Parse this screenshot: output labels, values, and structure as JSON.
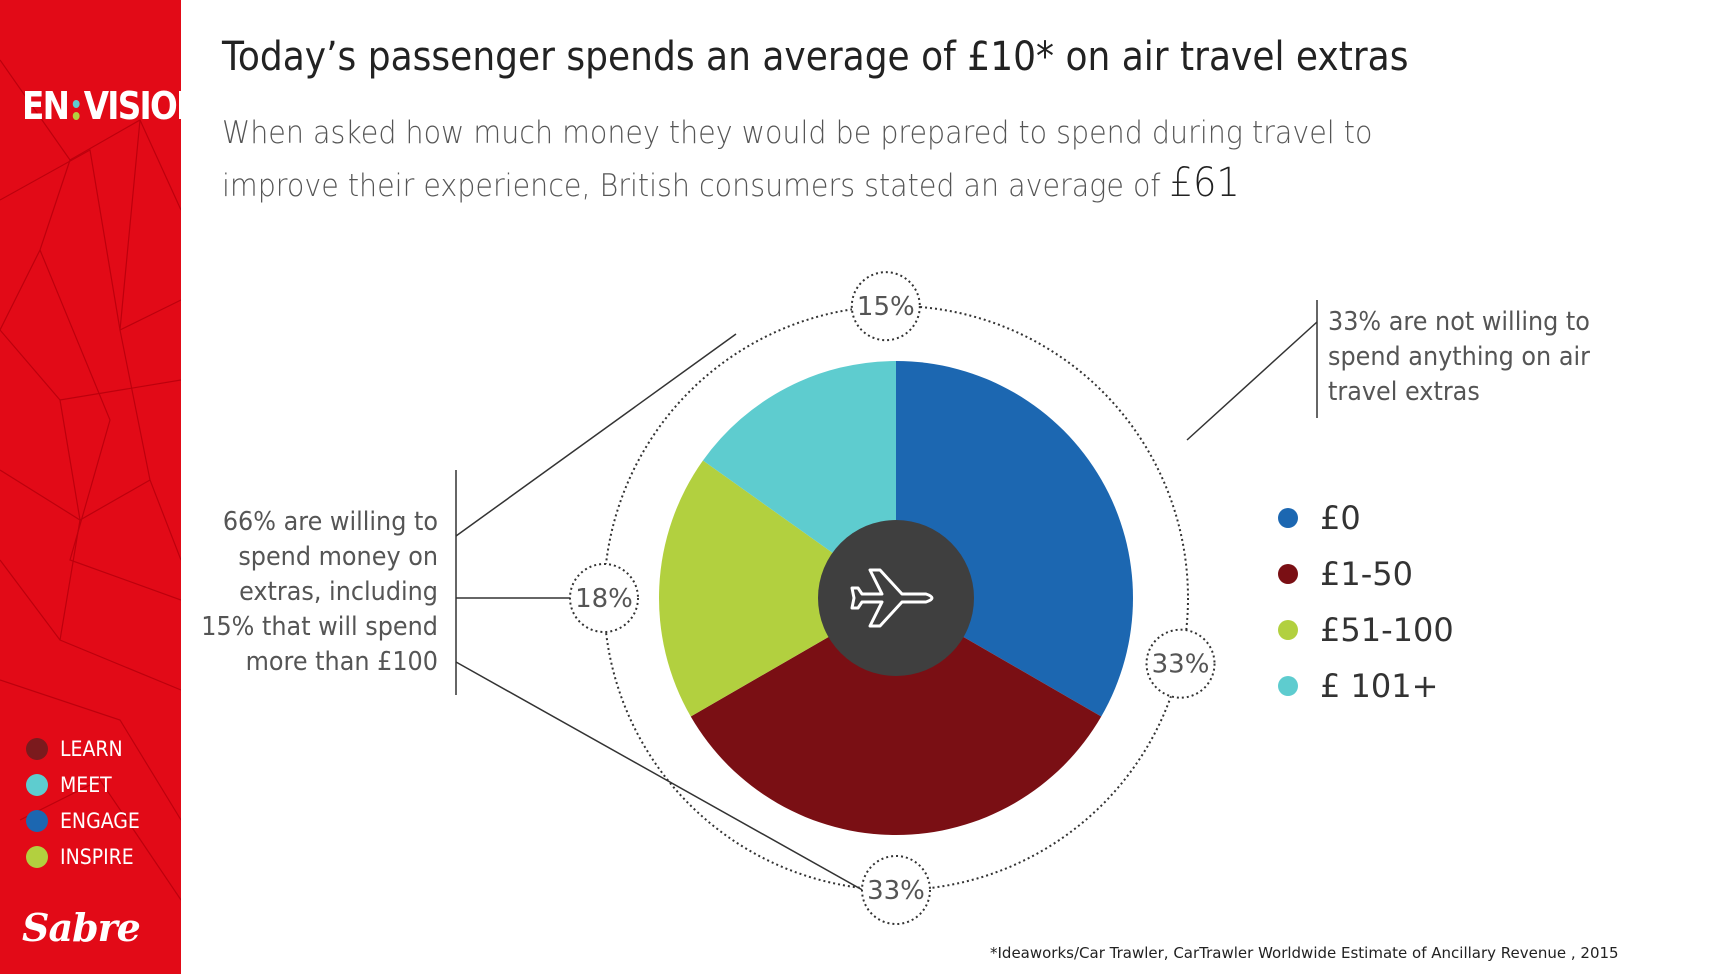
{
  "brand": {
    "left": "EN",
    "right": "VISION"
  },
  "nav": [
    {
      "label": "LEARN",
      "color": "#7b1a1d"
    },
    {
      "label": "MEET",
      "color": "#5ecccf"
    },
    {
      "label": "ENGAGE",
      "color": "#1c67b1"
    },
    {
      "label": "INSPIRE",
      "color": "#b2d03f"
    }
  ],
  "company_logo": "Sabre",
  "header": {
    "title": "Today’s passenger spends an average of £10* on air travel extras",
    "subtitle_text": "When asked how much money they would be prepared to spend during travel to improve their experience, British consumers stated an average of",
    "subtitle_amount": "£61"
  },
  "callouts": {
    "left": [
      "66% are willing to",
      "spend money on",
      "extras, including",
      "15% that will spend",
      "more than £100"
    ],
    "right": [
      "33% are not willing to",
      "spend anything on air",
      "travel extras"
    ]
  },
  "center_icon": "airplane-icon",
  "footnote": "*Ideaworks/Car Trawler, CarTrawler Worldwide Estimate of Ancillary Revenue , 2015",
  "chart_data": {
    "type": "pie",
    "donut": true,
    "categories": [
      "£0",
      "£1-50",
      "£51-100",
      "£ 101+"
    ],
    "values": [
      33,
      33,
      18,
      15
    ],
    "data_labels": [
      "33%",
      "33%",
      "18%",
      "15%"
    ],
    "colors": [
      "#1c67b1",
      "#7a0f14",
      "#b2d03f",
      "#5ecccf"
    ],
    "legend_position": "right"
  }
}
